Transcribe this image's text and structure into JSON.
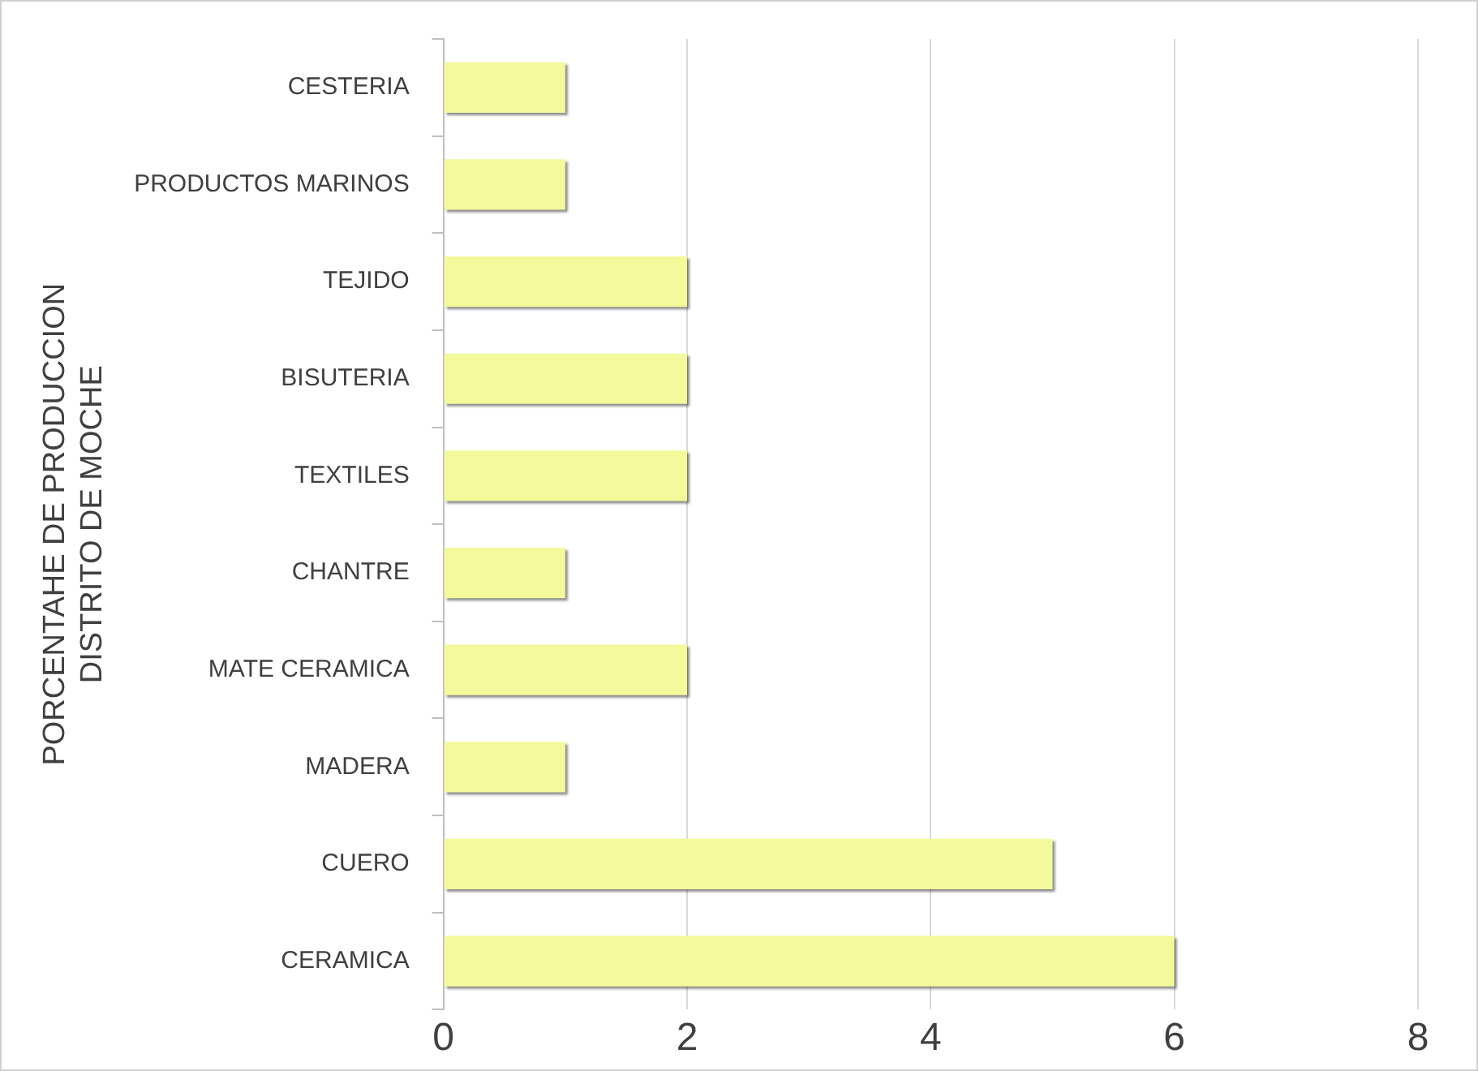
{
  "chart_data": {
    "type": "bar",
    "orientation": "horizontal",
    "ylabel": "PORCENTAHE DE PRODUCCION\nDISTRITO DE MOCHE",
    "categories": [
      "CESTERIA",
      "PRODUCTOS MARINOS",
      "TEJIDO",
      "BISUTERIA",
      "TEXTILES",
      "CHANTRE",
      "MATE CERAMICA",
      "MADERA",
      "CUERO",
      "CERAMICA"
    ],
    "values": [
      1,
      1,
      2,
      2,
      2,
      1,
      2,
      1,
      5,
      6
    ],
    "color": "#f4fa9c",
    "xlim": [
      0,
      8
    ],
    "xticks": [
      0,
      2,
      4,
      6,
      8
    ],
    "grid": "x",
    "legend": false
  }
}
